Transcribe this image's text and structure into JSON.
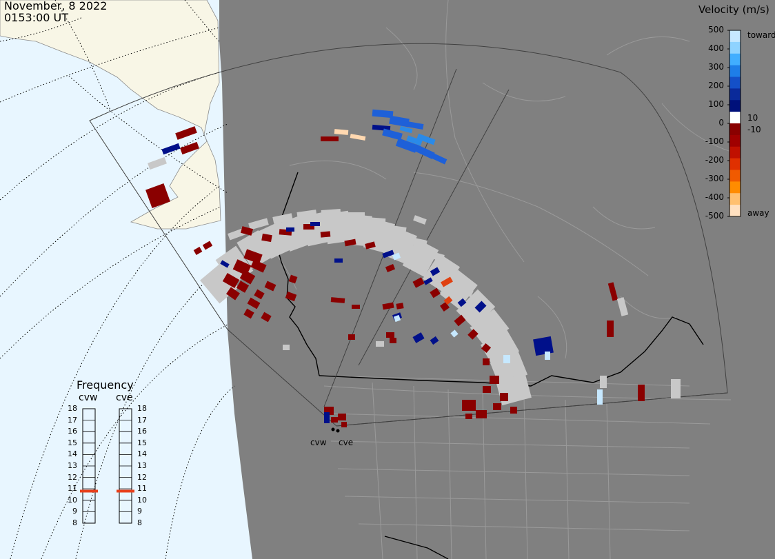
{
  "header": {
    "date": "November, 8 2022",
    "time": "0153:00 UT"
  },
  "colorbar": {
    "title": "Velocity (m/s)",
    "ticks": [
      "500",
      "400",
      "300",
      "200",
      "100",
      "0",
      "-100",
      "-200",
      "-300",
      "-400",
      "-500"
    ],
    "inner_ticks": [
      "10",
      "-10"
    ],
    "toward_label": "toward",
    "away_label": "away",
    "colors": [
      "#c6e8ff",
      "#8fd3ff",
      "#41aeff",
      "#1e7ee8",
      "#1450c8",
      "#0a2a9a",
      "#00107a",
      "#ffffff",
      "#8a0000",
      "#a00000",
      "#c01000",
      "#e03000",
      "#f05a00",
      "#ff8c00",
      "#ffc070",
      "#ffe0c0"
    ]
  },
  "frequency_panel": {
    "title": "Frequency",
    "radars": [
      "cvw",
      "cve"
    ],
    "scale": [
      "18",
      "17",
      "16",
      "15",
      "14",
      "13",
      "12",
      "11",
      "10",
      "9",
      "8"
    ],
    "selected_mhz": [
      10.8,
      10.8
    ],
    "marker_color": "#e8401c"
  },
  "radar_labels": [
    "cvw",
    "cve"
  ],
  "map": {
    "ocean_color": "#e8f6ff",
    "land_color": "#f8f6e6",
    "dark_region_color": "#808080",
    "boundary_color": "#9a9a9a",
    "border_color": "#000000",
    "ground_scatter_color": "#c8c8c8"
  }
}
